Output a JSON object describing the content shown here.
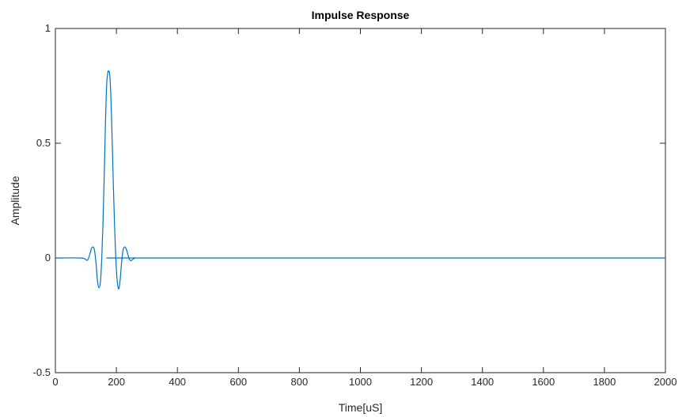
{
  "chart_data": {
    "type": "line",
    "title": "Impulse Response",
    "xlabel": "Time[uS]",
    "ylabel": "Amplitude",
    "xlim": [
      0,
      2000
    ],
    "ylim": [
      -0.5,
      1
    ],
    "xticks": [
      "0",
      "200",
      "400",
      "600",
      "800",
      "1000",
      "1200",
      "1400",
      "1600",
      "1800",
      "2000"
    ],
    "yticks": [
      "-0.5",
      "0",
      "0.5",
      "1"
    ],
    "grid": false,
    "series": [
      {
        "color": "#0072BD",
        "x": [
          0,
          80,
          95,
          105,
          112,
          118,
          123,
          128,
          133,
          138,
          143,
          148,
          152,
          156,
          160,
          164,
          168,
          172,
          175,
          178,
          182,
          186,
          190,
          194,
          198,
          202,
          207,
          212,
          217,
          222,
          227,
          232,
          237,
          242,
          247,
          252,
          257,
          262,
          270,
          280,
          300,
          2000
        ],
        "y": [
          0,
          0,
          -0.003,
          -0.01,
          0.012,
          0.04,
          0.048,
          0.035,
          -0.02,
          -0.1,
          -0.13,
          -0.1,
          0.0,
          0.15,
          0.35,
          0.58,
          0.75,
          0.81,
          0.812,
          0.8,
          0.7,
          0.52,
          0.32,
          0.14,
          0.0,
          -0.09,
          -0.135,
          -0.1,
          -0.02,
          0.035,
          0.048,
          0.04,
          0.018,
          -0.004,
          -0.012,
          -0.008,
          -0.003,
          0.0,
          0.0,
          0.0,
          0.0,
          0.0
        ]
      }
    ]
  }
}
